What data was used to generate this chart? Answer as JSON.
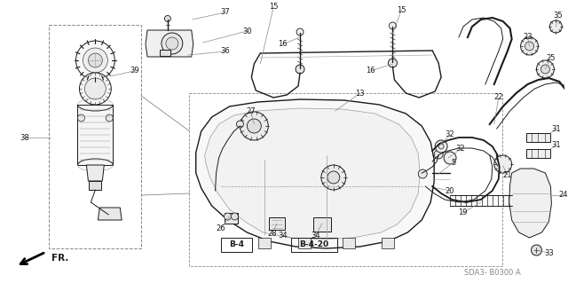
{
  "bg_color": "#ffffff",
  "fig_width": 6.4,
  "fig_height": 3.19,
  "line_color": "#1a1a1a",
  "label_color": "#111111",
  "label_fontsize": 6.0,
  "gray_color": "#888888",
  "light_gray": "#cccccc",
  "medium_gray": "#999999",
  "sda_text": "SDA3- B0300 A",
  "fr_text": "FR.",
  "b4_text": "B-4",
  "b420_text": "B-4-20"
}
